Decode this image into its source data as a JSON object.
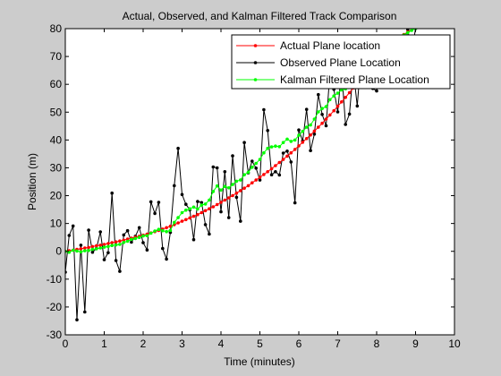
{
  "chart_data": {
    "type": "line",
    "title": "Actual, Observed, and Kalman Filtered Track Comparison",
    "xlabel": "Time (minutes)",
    "ylabel": "Position (m)",
    "xlim": [
      0,
      10
    ],
    "ylim": [
      -30,
      80
    ],
    "xticks": [
      "0",
      "1",
      "2",
      "3",
      "4",
      "5",
      "6",
      "7",
      "8",
      "9",
      "10"
    ],
    "yticks": [
      "-30",
      "-20",
      "-10",
      "0",
      "10",
      "20",
      "30",
      "40",
      "50",
      "60",
      "70",
      "80"
    ],
    "grid": false,
    "legend_position": "top-right",
    "series": [
      {
        "name": "Actual Plane location",
        "color": "#ff0000",
        "x": [
          0,
          0.1,
          0.2,
          0.3,
          0.4,
          0.5,
          0.6,
          0.7,
          0.8,
          0.9,
          1.0,
          1.1,
          1.2,
          1.3,
          1.4,
          1.5,
          1.6,
          1.7,
          1.8,
          1.9,
          2.0,
          2.1,
          2.2,
          2.3,
          2.4,
          2.5,
          2.6,
          2.7,
          2.8,
          2.9,
          3.0,
          3.1,
          3.2,
          3.3,
          3.4,
          3.5,
          3.6,
          3.7,
          3.8,
          3.9,
          4.0,
          4.1,
          4.2,
          4.3,
          4.4,
          4.5,
          4.6,
          4.7,
          4.8,
          4.9,
          5.0,
          5.1,
          5.2,
          5.3,
          5.4,
          5.5,
          5.6,
          5.7,
          5.8,
          5.9,
          6.0,
          6.1,
          6.2,
          6.3,
          6.4,
          6.5,
          6.6,
          6.7,
          6.8,
          6.9,
          7.0,
          7.1,
          7.2,
          7.3,
          7.4,
          7.5,
          7.6,
          7.7,
          7.8,
          7.9,
          8.0,
          8.1,
          8.2,
          8.3,
          8.4,
          8.5,
          8.6,
          8.7,
          8.8,
          8.9,
          9.0
        ],
        "y": [
          0,
          0.2,
          0.4,
          0.7,
          0.9,
          1.2,
          1.4,
          1.7,
          2.0,
          2.2,
          2.5,
          2.8,
          3.1,
          3.4,
          3.7,
          4.0,
          4.4,
          4.7,
          5.1,
          5.4,
          5.8,
          6.2,
          6.6,
          7.1,
          7.5,
          8.0,
          8.5,
          9.0,
          9.6,
          10.2,
          10.8,
          11.4,
          12.0,
          12.6,
          13.2,
          13.9,
          14.6,
          15.3,
          16.0,
          16.8,
          17.6,
          18.4,
          19.2,
          20.0,
          20.9,
          21.8,
          22.7,
          23.6,
          24.6,
          25.6,
          26.6,
          27.6,
          28.6,
          29.7,
          30.8,
          31.9,
          33.0,
          34.2,
          35.4,
          36.6,
          37.9,
          39.2,
          40.5,
          41.8,
          43.2,
          44.6,
          46.0,
          47.5,
          49.0,
          50.5,
          52.1,
          53.7,
          55.3,
          57.0,
          58.7,
          60.4,
          62.1,
          63.9,
          65.7,
          67.5,
          69.3,
          70.7,
          72.1,
          73.4,
          74.6,
          75.8,
          76.9,
          77.9,
          78.8,
          79.6,
          80.3
        ]
      },
      {
        "name": "Observed Plane Location",
        "color": "#000000",
        "x": [
          0,
          0.1,
          0.2,
          0.3,
          0.4,
          0.5,
          0.6,
          0.7,
          0.8,
          0.9,
          1.0,
          1.1,
          1.2,
          1.3,
          1.4,
          1.5,
          1.6,
          1.7,
          1.8,
          1.9,
          2.0,
          2.1,
          2.2,
          2.3,
          2.4,
          2.5,
          2.6,
          2.7,
          2.8,
          2.9,
          3.0,
          3.1,
          3.2,
          3.3,
          3.4,
          3.5,
          3.6,
          3.7,
          3.8,
          3.9,
          4.0,
          4.1,
          4.2,
          4.3,
          4.4,
          4.5,
          4.6,
          4.7,
          4.8,
          4.9,
          5.0,
          5.1,
          5.2,
          5.3,
          5.4,
          5.5,
          5.6,
          5.7,
          5.8,
          5.9,
          6.0,
          6.1,
          6.2,
          6.3,
          6.4,
          6.5,
          6.6,
          6.7,
          6.8,
          6.9,
          7.0,
          7.1,
          7.2,
          7.3,
          7.4,
          7.5,
          7.6,
          7.7,
          7.8,
          7.9,
          8.0,
          8.1,
          8.2,
          8.3,
          8.4,
          8.5,
          8.6,
          8.7,
          8.8,
          8.9,
          9.0
        ],
        "y": [
          -7.5,
          5.7,
          9.1,
          -24.6,
          2.2,
          -21.8,
          7.6,
          -0.3,
          1.0,
          7.0,
          -3.0,
          -0.5,
          20.9,
          -3.3,
          -7.2,
          5.9,
          7.4,
          3.3,
          5.4,
          8.5,
          3.1,
          0.5,
          17.8,
          13.6,
          17.6,
          1.0,
          -2.8,
          6.8,
          23.6,
          37.0,
          20.4,
          16.9,
          14.9,
          4.2,
          17.9,
          17.5,
          9.6,
          6.2,
          30.3,
          30.0,
          14.2,
          28.6,
          12.1,
          34.3,
          19.4,
          10.8,
          39.1,
          28.2,
          32.4,
          29.9,
          25.6,
          50.9,
          43.4,
          27.5,
          28.6,
          27.4,
          35.3,
          36.0,
          32.1,
          17.4,
          43.6,
          39.6,
          51.0,
          36.2,
          42.1,
          56.3,
          49.2,
          45.1,
          64.2,
          58.2,
          50.1,
          65.3,
          45.6,
          49.3,
          65.3,
          52.2,
          69.5,
          60.0,
          65.9,
          58.5,
          57.6,
          65.9,
          61.8,
          60.3,
          65.5,
          65.0,
          59.8,
          70.5,
          79.7,
          71.7,
          80.0
        ]
      },
      {
        "name": "Kalman Filtered Plane Location",
        "color": "#00ff00",
        "x": [
          0,
          0.1,
          0.2,
          0.3,
          0.4,
          0.5,
          0.6,
          0.7,
          0.8,
          0.9,
          1.0,
          1.1,
          1.2,
          1.3,
          1.4,
          1.5,
          1.6,
          1.7,
          1.8,
          1.9,
          2.0,
          2.1,
          2.2,
          2.3,
          2.4,
          2.5,
          2.6,
          2.7,
          2.8,
          2.9,
          3.0,
          3.1,
          3.2,
          3.3,
          3.4,
          3.5,
          3.6,
          3.7,
          3.8,
          3.9,
          4.0,
          4.1,
          4.2,
          4.3,
          4.4,
          4.5,
          4.6,
          4.7,
          4.8,
          4.9,
          5.0,
          5.1,
          5.2,
          5.3,
          5.4,
          5.5,
          5.6,
          5.7,
          5.8,
          5.9,
          6.0,
          6.1,
          6.2,
          6.3,
          6.4,
          6.5,
          6.6,
          6.7,
          6.8,
          6.9,
          7.0,
          7.1,
          7.2,
          7.3,
          7.4,
          7.5,
          7.6,
          7.7,
          7.8,
          7.9,
          8.0,
          8.1,
          8.2,
          8.3,
          8.4,
          8.5,
          8.6,
          8.7,
          8.8,
          8.9,
          9.0
        ],
        "y": [
          0,
          -0.3,
          0.4,
          0.1,
          -0.2,
          0.2,
          0.3,
          0.7,
          0.9,
          1.2,
          1.5,
          1.7,
          2.1,
          2.3,
          2.5,
          3.2,
          3.6,
          4.3,
          4.6,
          5.0,
          5.5,
          5.6,
          6.5,
          7.3,
          7.9,
          7.4,
          7.1,
          7.5,
          10.4,
          12.1,
          13.9,
          14.8,
          15.3,
          15.9,
          15.2,
          16.6,
          17.0,
          18.4,
          21.5,
          23.5,
          22.0,
          23.3,
          22.8,
          24.0,
          25.2,
          25.6,
          27.5,
          28.4,
          30.2,
          31.6,
          33.0,
          35.4,
          37.0,
          37.5,
          37.8,
          37.6,
          39.1,
          40.3,
          39.5,
          40.0,
          41.7,
          43.1,
          44.6,
          45.4,
          47.5,
          50.1,
          51.3,
          52.0,
          54.5,
          55.8,
          56.8,
          58.0,
          58.4,
          59.0,
          60.6,
          61.7,
          63.1,
          64.3,
          66.1,
          67.3,
          68.8,
          70.5,
          71.9,
          72.9,
          74.5,
          75.4,
          76.5,
          77.7,
          78.6,
          79.4,
          80.1
        ]
      }
    ]
  }
}
